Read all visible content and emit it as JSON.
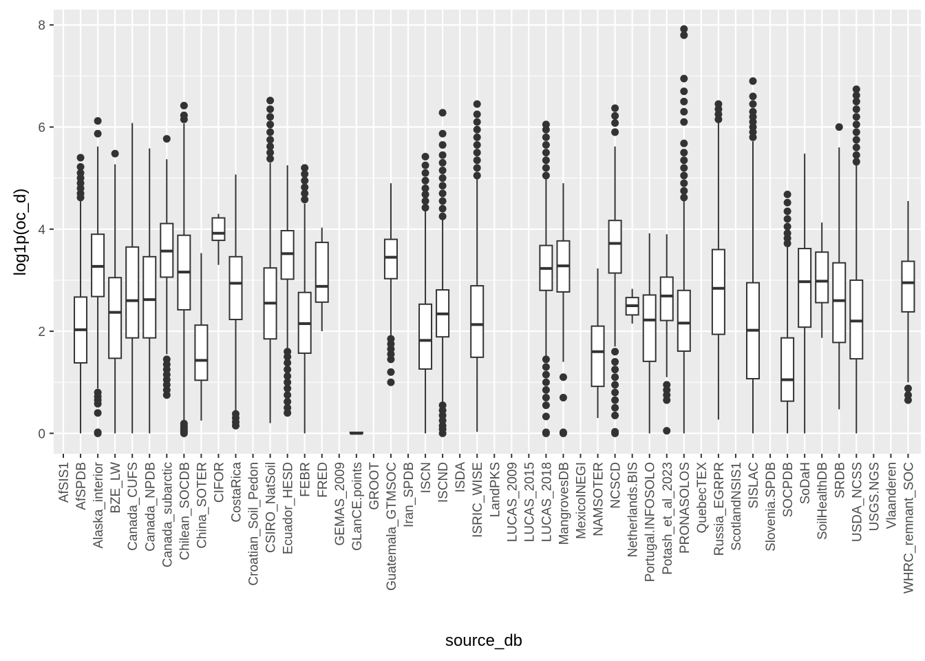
{
  "chart_data": {
    "type": "boxplot",
    "xlabel": "source_db",
    "ylabel": "log1p(oc_d)",
    "ylim": [
      -0.4,
      8.3
    ],
    "yticks": [
      0,
      2,
      4,
      6,
      8
    ],
    "grid": true,
    "colors": {
      "panel": "#ebebeb",
      "grid": "#ffffff",
      "box": "#333333",
      "tick_text": "#4d4d4d"
    },
    "categories": [
      "AfSIS1",
      "AfSPDB",
      "Alaska_interior",
      "BZE_LW",
      "Canada_CUFS",
      "Canada_NPDB",
      "Canada_subarctic",
      "Chilean_SOCDB",
      "China_SOTER",
      "CIFOR",
      "CostaRica",
      "Croatian_Soil_Pedon",
      "CSIRO_NatSoil",
      "Ecuador_HESD",
      "FEBR",
      "FRED",
      "GEMAS_2009",
      "GLanCE.points",
      "GROOT",
      "Guatemala_GTMSOC",
      "Iran_SPDB",
      "ISCN",
      "ISCND",
      "ISDA",
      "ISRIC_WISE",
      "LandPKS",
      "LUCAS_2009",
      "LUCAS_2015",
      "LUCAS_2018",
      "MangrovesDB",
      "MexicoINEGI",
      "NAMSOTER",
      "NCSCD",
      "Netherlands.BIS",
      "Portugal.INFOSOLO",
      "Potash_et_al_2023",
      "PRONASOLOS",
      "QuebecTEX",
      "Russia_EGRPR",
      "ScotlandNSIS1",
      "SISLAC",
      "Slovenia.SPDB",
      "SOCPDB",
      "SoDaH",
      "SoilHealthDB",
      "SRDB",
      "USDA_NCSS",
      "USGS.NGS",
      "Vlaanderen",
      "WHRC_remnant_SOC"
    ],
    "boxes": [
      null,
      {
        "wlo": 0,
        "q1": 1.38,
        "med": 2.03,
        "q3": 2.67,
        "whi": 4.55,
        "out": [
          4.62,
          4.7,
          4.8,
          4.9,
          5.0,
          5.1,
          5.22,
          5.4
        ]
      },
      {
        "wlo": 0.88,
        "q1": 2.68,
        "med": 3.27,
        "q3": 3.9,
        "whi": 5.62,
        "out": [
          0,
          0.02,
          0.4,
          0.58,
          0.65,
          0.72,
          0.8,
          5.87,
          6.12
        ]
      },
      {
        "wlo": 0,
        "q1": 1.47,
        "med": 2.37,
        "q3": 3.05,
        "whi": 5.27,
        "out": [
          5.48
        ]
      },
      {
        "wlo": 0,
        "q1": 1.87,
        "med": 2.6,
        "q3": 3.65,
        "whi": 6.08,
        "out": []
      },
      {
        "wlo": 0,
        "q1": 1.87,
        "med": 2.62,
        "q3": 3.46,
        "whi": 5.58,
        "out": []
      },
      {
        "wlo": 1.55,
        "q1": 3.06,
        "med": 3.57,
        "q3": 4.11,
        "whi": 5.37,
        "out": [
          0.75,
          0.85,
          0.95,
          1.05,
          1.15,
          1.25,
          1.35,
          1.45,
          5.77
        ]
      },
      {
        "wlo": 0.25,
        "q1": 2.42,
        "med": 3.16,
        "q3": 3.88,
        "whi": 6.07,
        "out": [
          0,
          0.03,
          0.06,
          0.1,
          0.14,
          0.19,
          6.15,
          6.23,
          6.42
        ]
      },
      {
        "wlo": 0.25,
        "q1": 1.04,
        "med": 1.43,
        "q3": 2.12,
        "whi": 3.53,
        "out": []
      },
      {
        "wlo": 3.3,
        "q1": 3.78,
        "med": 3.92,
        "q3": 4.22,
        "whi": 4.3,
        "out": []
      },
      {
        "wlo": 0.45,
        "q1": 2.23,
        "med": 2.94,
        "q3": 3.46,
        "whi": 5.07,
        "out": [
          0.15,
          0.22,
          0.3,
          0.38
        ]
      },
      null,
      {
        "wlo": 0.2,
        "q1": 1.85,
        "med": 2.55,
        "q3": 3.24,
        "whi": 5.3,
        "out": [
          5.38,
          5.5,
          5.62,
          5.75,
          5.9,
          6.05,
          6.2,
          6.35,
          6.52
        ]
      },
      {
        "wlo": 1.65,
        "q1": 3.02,
        "med": 3.52,
        "q3": 3.97,
        "whi": 5.25,
        "out": [
          0.4,
          0.5,
          0.62,
          0.75,
          0.88,
          1.0,
          1.12,
          1.25,
          1.38,
          1.5,
          1.6
        ]
      },
      {
        "wlo": 0,
        "q1": 1.57,
        "med": 2.15,
        "q3": 2.76,
        "whi": 4.5,
        "out": [
          4.58,
          4.7,
          4.82,
          4.95,
          5.08,
          5.2
        ]
      },
      {
        "wlo": 2.0,
        "q1": 2.57,
        "med": 2.88,
        "q3": 3.74,
        "whi": 4.03,
        "out": []
      },
      null,
      {
        "wlo": 0,
        "q1": 0,
        "med": 0,
        "q3": 0.02,
        "whi": 0.02,
        "out": []
      },
      null,
      {
        "wlo": 1.9,
        "q1": 3.03,
        "med": 3.45,
        "q3": 3.8,
        "whi": 4.9,
        "out": [
          1.0,
          1.2,
          1.45,
          1.55,
          1.65,
          1.75,
          1.85
        ]
      },
      null,
      {
        "wlo": 0,
        "q1": 1.26,
        "med": 1.82,
        "q3": 2.53,
        "whi": 4.35,
        "out": [
          4.42,
          4.55,
          4.68,
          4.8,
          4.95,
          5.1,
          5.25,
          5.42
        ]
      },
      {
        "wlo": 0.58,
        "q1": 1.89,
        "med": 2.34,
        "q3": 2.81,
        "whi": 4.18,
        "out": [
          0,
          0.08,
          0.15,
          0.25,
          0.35,
          0.45,
          0.55,
          4.25,
          4.4,
          4.55,
          4.7,
          4.85,
          5.0,
          5.15,
          5.3,
          5.45,
          5.65,
          5.87,
          6.28
        ]
      },
      null,
      {
        "wlo": 0.03,
        "q1": 1.49,
        "med": 2.13,
        "q3": 2.89,
        "whi": 4.98,
        "out": [
          5.05,
          5.2,
          5.35,
          5.5,
          5.65,
          5.8,
          5.95,
          6.1,
          6.25,
          6.45
        ]
      },
      null,
      null,
      null,
      {
        "wlo": 1.5,
        "q1": 2.8,
        "med": 3.23,
        "q3": 3.68,
        "whi": 4.98,
        "out": [
          0,
          0.02,
          0.33,
          0.55,
          0.7,
          0.85,
          1.0,
          1.15,
          1.3,
          1.45,
          5.05,
          5.2,
          5.35,
          5.5,
          5.65,
          5.8,
          5.95,
          6.05
        ]
      },
      {
        "wlo": 1.4,
        "q1": 2.77,
        "med": 3.28,
        "q3": 3.77,
        "whi": 4.9,
        "out": [
          0,
          0.02,
          0.7,
          1.1
        ]
      },
      null,
      {
        "wlo": 0.3,
        "q1": 0.92,
        "med": 1.6,
        "q3": 2.1,
        "whi": 3.23,
        "out": []
      },
      {
        "wlo": 1.7,
        "q1": 3.14,
        "med": 3.72,
        "q3": 4.17,
        "whi": 5.62,
        "out": [
          0,
          0.03,
          0.35,
          0.5,
          0.65,
          0.8,
          0.95,
          1.1,
          1.25,
          1.4,
          1.6,
          5.9,
          6.08,
          6.22,
          6.37
        ]
      },
      {
        "wlo": 2.15,
        "q1": 2.32,
        "med": 2.5,
        "q3": 2.66,
        "whi": 2.83,
        "out": []
      },
      {
        "wlo": 0,
        "q1": 1.41,
        "med": 2.22,
        "q3": 2.71,
        "whi": 3.92,
        "out": []
      },
      {
        "wlo": 1.1,
        "q1": 2.21,
        "med": 2.69,
        "q3": 3.06,
        "whi": 3.9,
        "out": [
          0.05,
          0.65,
          0.75,
          0.85,
          0.95
        ]
      },
      {
        "wlo": 0,
        "q1": 1.61,
        "med": 2.16,
        "q3": 2.8,
        "whi": 4.55,
        "out": [
          4.62,
          4.75,
          4.9,
          5.05,
          5.2,
          5.35,
          5.5,
          5.68,
          6.1,
          6.3,
          6.5,
          6.7,
          6.95,
          7.8,
          7.92
        ]
      },
      null,
      {
        "wlo": 0.27,
        "q1": 1.94,
        "med": 2.84,
        "q3": 3.6,
        "whi": 6.08,
        "out": [
          6.15,
          6.25,
          6.35,
          6.45
        ]
      },
      null,
      {
        "wlo": 0,
        "q1": 1.07,
        "med": 2.02,
        "q3": 2.95,
        "whi": 5.72,
        "out": [
          5.8,
          5.9,
          6.0,
          6.1,
          6.2,
          6.3,
          6.45,
          6.6,
          6.9
        ]
      },
      null,
      {
        "wlo": 0,
        "q1": 0.63,
        "med": 1.05,
        "q3": 1.87,
        "whi": 3.65,
        "out": [
          3.72,
          3.82,
          3.92,
          4.05,
          4.2,
          4.35,
          4.52,
          4.68
        ]
      },
      {
        "wlo": 0,
        "q1": 2.08,
        "med": 2.97,
        "q3": 3.62,
        "whi": 5.48,
        "out": []
      },
      {
        "wlo": 1.87,
        "q1": 2.56,
        "med": 2.98,
        "q3": 3.55,
        "whi": 4.13,
        "out": []
      },
      {
        "wlo": 0.47,
        "q1": 1.78,
        "med": 2.6,
        "q3": 3.34,
        "whi": 5.6,
        "out": [
          6.0
        ]
      },
      {
        "wlo": 0,
        "q1": 1.46,
        "med": 2.2,
        "q3": 3.0,
        "whi": 5.25,
        "out": [
          5.32,
          5.45,
          5.6,
          5.75,
          5.9,
          6.05,
          6.2,
          6.35,
          6.5,
          6.62,
          6.74
        ]
      },
      null,
      null,
      {
        "wlo": 1.0,
        "q1": 2.38,
        "med": 2.95,
        "q3": 3.37,
        "whi": 4.55,
        "out": [
          0.65,
          0.75,
          0.88
        ]
      }
    ]
  }
}
